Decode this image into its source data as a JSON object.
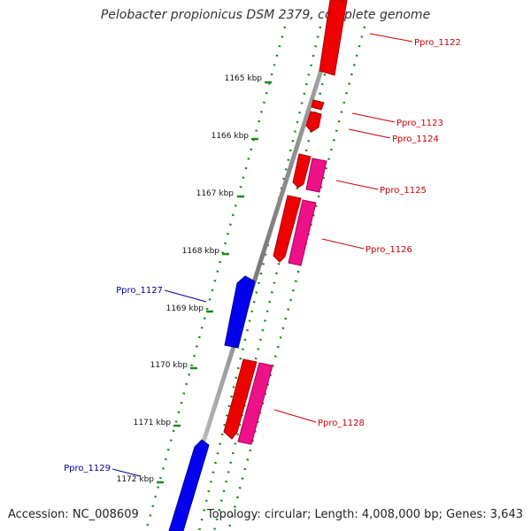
{
  "header": {
    "title": "Pelobacter propionicus DSM 2379, complete genome"
  },
  "footer": {
    "accession": "Accession: NC_008609",
    "summary": "Topology: circular; Length: 4,008,000 bp; Genes: 3,643"
  },
  "map": {
    "ticks": [
      "1165 kbp",
      "1166 kbp",
      "1167 kbp",
      "1168 kbp",
      "1169 kbp",
      "1170 kbp",
      "1171 kbp",
      "1172 kbp"
    ],
    "genes": [
      {
        "id": "Ppro_1122",
        "strand": "+",
        "color": "#cc0000"
      },
      {
        "id": "Ppro_1123",
        "strand": "+",
        "color": "#cc0000"
      },
      {
        "id": "Ppro_1124",
        "strand": "+",
        "color": "#cc0000"
      },
      {
        "id": "Ppro_1125",
        "strand": "+",
        "color": "#dd1177"
      },
      {
        "id": "Ppro_1126",
        "strand": "+",
        "color": "#dd1177"
      },
      {
        "id": "Ppro_1127",
        "strand": "-",
        "color": "#0000cc"
      },
      {
        "id": "Ppro_1128",
        "strand": "+",
        "color": "#dd1177"
      },
      {
        "id": "Ppro_1129",
        "strand": "-",
        "color": "#0000cc"
      }
    ],
    "colors": {
      "forward_label": "#cc0000",
      "reverse_label": "#000099",
      "backbone": "#888888",
      "dots": "#228822"
    }
  }
}
